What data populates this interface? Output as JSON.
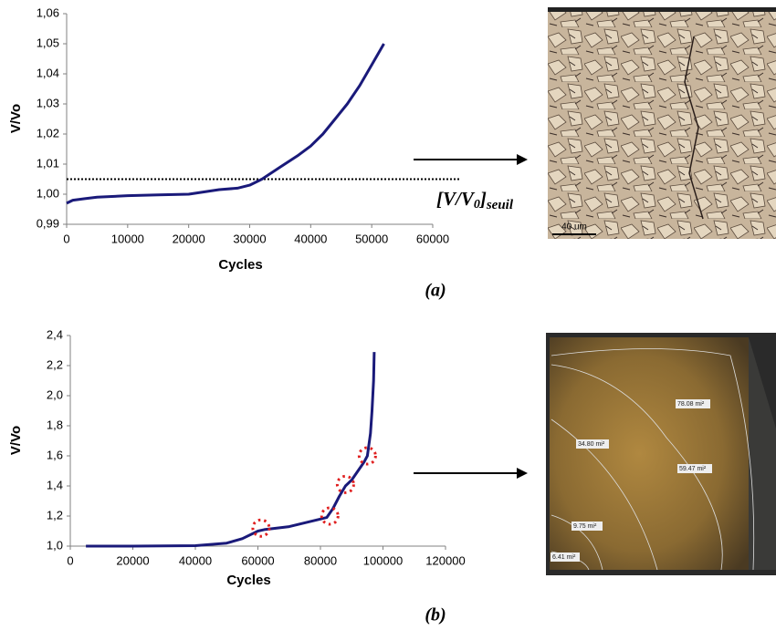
{
  "chart_data": [
    {
      "type": "line",
      "ylabel": "V/Vo",
      "xlabel": "Cycles",
      "x": [
        0,
        1000,
        3000,
        5000,
        10000,
        15000,
        20000,
        25000,
        28000,
        30000,
        32000,
        35000,
        38000,
        40000,
        42000,
        44000,
        46000,
        48000,
        50000,
        52000
      ],
      "series": [
        {
          "color": "#1a1a7a",
          "values": [
            0.997,
            0.998,
            0.9985,
            0.999,
            0.9995,
            0.9998,
            1.0,
            1.0015,
            1.002,
            1.003,
            1.005,
            1.009,
            1.013,
            1.016,
            1.02,
            1.025,
            1.03,
            1.036,
            1.043,
            1.05
          ]
        }
      ],
      "xlim": [
        0,
        60000
      ],
      "xticks": [
        0,
        10000,
        20000,
        30000,
        40000,
        50000,
        60000
      ],
      "ylim": [
        0.99,
        1.06
      ],
      "yticks": [
        {
          "value": 0.99,
          "label": "0,99"
        },
        {
          "value": 1.0,
          "label": "1,00"
        },
        {
          "value": 1.01,
          "label": "1,01"
        },
        {
          "value": 1.02,
          "label": "1,02"
        },
        {
          "value": 1.03,
          "label": "1,03"
        },
        {
          "value": 1.04,
          "label": "1,04"
        },
        {
          "value": 1.05,
          "label": "1,05"
        },
        {
          "value": 1.06,
          "label": "1,06"
        }
      ],
      "threshold": 1.005,
      "threshold_label": [
        "[V/V",
        "0",
        "]",
        "seuil"
      ]
    },
    {
      "type": "line",
      "ylabel": "V/Vo",
      "xlabel": "Cycles",
      "x": [
        5000,
        20000,
        40000,
        50000,
        55000,
        60000,
        62000,
        70000,
        80000,
        82000,
        84000,
        86000,
        88000,
        90000,
        92000,
        94000,
        95000,
        96000,
        96500,
        97000,
        97200
      ],
      "series": [
        {
          "color": "#1a1a7a",
          "values": [
            1.0,
            1.0,
            1.003,
            1.02,
            1.05,
            1.1,
            1.11,
            1.13,
            1.18,
            1.19,
            1.25,
            1.33,
            1.4,
            1.44,
            1.5,
            1.56,
            1.6,
            1.75,
            1.9,
            2.1,
            2.29
          ]
        }
      ],
      "highlights": {
        "color": "#e02020",
        "x": [
          61000,
          83000,
          88000,
          95000
        ],
        "values": [
          1.12,
          1.2,
          1.41,
          1.6
        ]
      },
      "xlim": [
        0,
        120000
      ],
      "xticks": [
        0,
        20000,
        40000,
        60000,
        80000,
        100000,
        120000
      ],
      "ylim": [
        1.0,
        2.4
      ],
      "yticks": [
        {
          "value": 1.0,
          "label": "1,0"
        },
        {
          "value": 1.2,
          "label": "1,2"
        },
        {
          "value": 1.4,
          "label": "1,4"
        },
        {
          "value": 1.6,
          "label": "1,6"
        },
        {
          "value": 1.8,
          "label": "1,8"
        },
        {
          "value": 2.0,
          "label": "2,0"
        },
        {
          "value": 2.2,
          "label": "2,2"
        },
        {
          "value": 2.4,
          "label": "2,4"
        }
      ]
    }
  ],
  "figure": {
    "panel_labels": [
      "(a)",
      "(b)"
    ],
    "micrograph_a": {
      "scale_bar": "40 um"
    },
    "micrograph_b": {
      "zones": [
        "78.08 mi²",
        "34.80 mi²",
        "59.47 mi²",
        "9.75 mi²",
        "6.41 mi²"
      ]
    }
  }
}
